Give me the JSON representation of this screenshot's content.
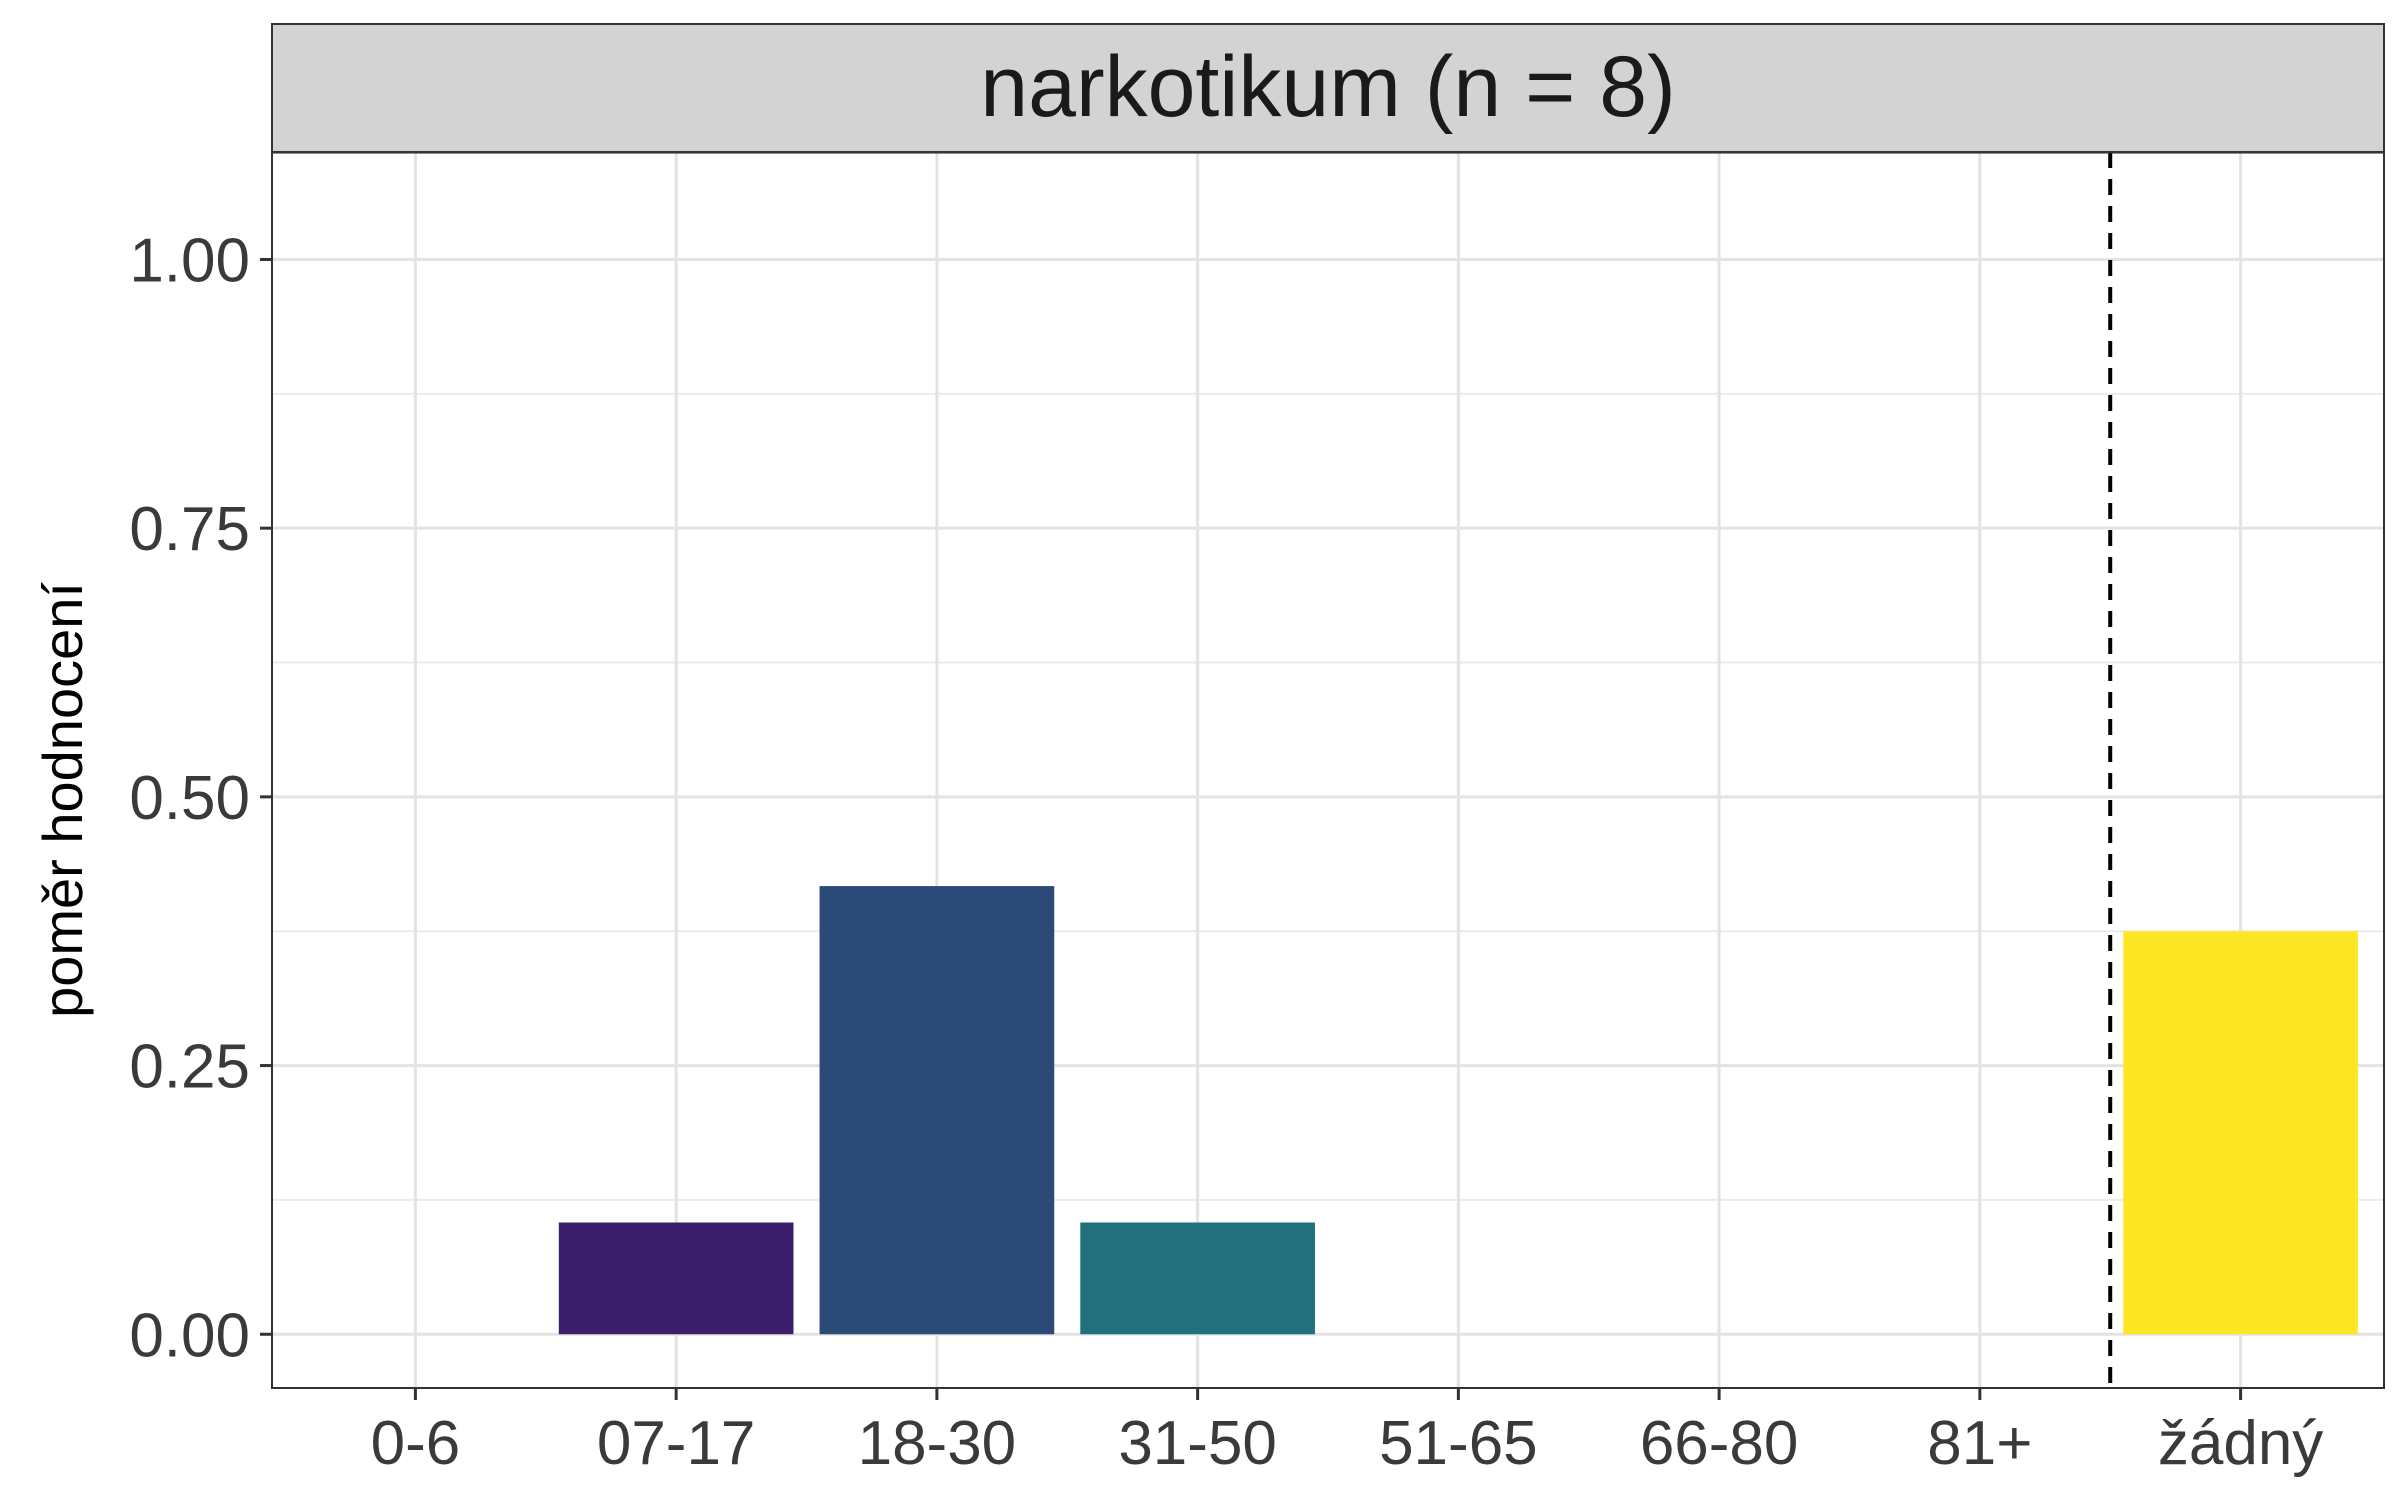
{
  "chart_data": {
    "type": "bar",
    "title": "narkotikum (n = 8)",
    "xlabel": "",
    "ylabel": "poměr hodnocení",
    "categories": [
      "0-6",
      "07-17",
      "18-30",
      "31-50",
      "51-65",
      "66-80",
      "81+",
      "žádný"
    ],
    "values": [
      0,
      0.104,
      0.417,
      0.104,
      0,
      0,
      0,
      0.375
    ],
    "colors": [
      "#440154",
      "#3b1f6a",
      "#2c4a78",
      "#21707c",
      "#1f9a8a",
      "#5ec962",
      "#b5de2b",
      "#fde725"
    ],
    "ylim": [
      -0.05,
      1.1
    ],
    "yticks": [
      0,
      0.25,
      0.5,
      0.75,
      1.0
    ],
    "ytick_labels": [
      "0.00",
      "0.25",
      "0.50",
      "0.75",
      "1.00"
    ],
    "grid": true,
    "separator": {
      "between": [
        "81+",
        "žádný"
      ],
      "style": "dashed"
    },
    "strip_background": "#d3d3d3"
  }
}
